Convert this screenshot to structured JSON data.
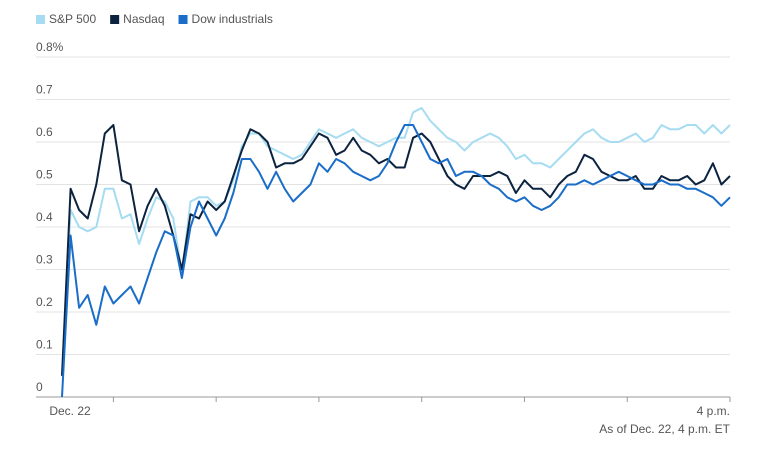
{
  "chart_data": {
    "type": "line",
    "categories": [
      "Dec. 22",
      null,
      null,
      null,
      null,
      null,
      null,
      null,
      null,
      null,
      null,
      null,
      null,
      null,
      null,
      null,
      null,
      null,
      null,
      null,
      null,
      null,
      null,
      null,
      null,
      null,
      null,
      null,
      null,
      null,
      null,
      null,
      null,
      null,
      null,
      null,
      null,
      null,
      null,
      null,
      null,
      null,
      null,
      null,
      null,
      null,
      null,
      null,
      null,
      null,
      null,
      null,
      null,
      null,
      null,
      null,
      null,
      null,
      null,
      null,
      null,
      null,
      null,
      null,
      null,
      null,
      null,
      null,
      null,
      null,
      null,
      null,
      null,
      null,
      null,
      null,
      null,
      null,
      "4 p.m."
    ],
    "series": [
      {
        "name": "S&P 500",
        "color": "#a6dcf2",
        "values": [
          0.05,
          0.44,
          0.4,
          0.39,
          0.4,
          0.49,
          0.49,
          0.42,
          0.43,
          0.36,
          0.42,
          0.47,
          0.46,
          0.42,
          0.29,
          0.46,
          0.47,
          0.47,
          0.45,
          0.46,
          0.51,
          0.59,
          0.62,
          0.62,
          0.59,
          0.58,
          0.57,
          0.56,
          0.57,
          0.6,
          0.63,
          0.62,
          0.61,
          0.62,
          0.63,
          0.61,
          0.6,
          0.59,
          0.6,
          0.61,
          0.61,
          0.67,
          0.68,
          0.65,
          0.63,
          0.61,
          0.6,
          0.58,
          0.6,
          0.61,
          0.62,
          0.61,
          0.59,
          0.56,
          0.57,
          0.55,
          0.55,
          0.54,
          0.56,
          0.58,
          0.6,
          0.62,
          0.63,
          0.61,
          0.6,
          0.6,
          0.61,
          0.62,
          0.6,
          0.61,
          0.64,
          0.63,
          0.63,
          0.64,
          0.64,
          0.62,
          0.64,
          0.62,
          0.64
        ]
      },
      {
        "name": "Nasdaq",
        "color": "#0c2340",
        "values": [
          0.05,
          0.49,
          0.44,
          0.42,
          0.5,
          0.62,
          0.64,
          0.51,
          0.5,
          0.39,
          0.45,
          0.49,
          0.45,
          0.38,
          0.3,
          0.43,
          0.42,
          0.46,
          0.44,
          0.46,
          0.52,
          0.58,
          0.63,
          0.62,
          0.6,
          0.54,
          0.55,
          0.55,
          0.56,
          0.59,
          0.62,
          0.61,
          0.57,
          0.58,
          0.61,
          0.58,
          0.57,
          0.55,
          0.56,
          0.54,
          0.54,
          0.61,
          0.62,
          0.6,
          0.56,
          0.52,
          0.5,
          0.49,
          0.52,
          0.52,
          0.52,
          0.53,
          0.52,
          0.48,
          0.51,
          0.49,
          0.49,
          0.47,
          0.5,
          0.52,
          0.53,
          0.57,
          0.56,
          0.53,
          0.52,
          0.51,
          0.51,
          0.52,
          0.49,
          0.49,
          0.52,
          0.51,
          0.51,
          0.52,
          0.5,
          0.51,
          0.55,
          0.5,
          0.52
        ]
      },
      {
        "name": "Dow industrials",
        "color": "#1a6dc8",
        "values": [
          0.0,
          0.38,
          0.21,
          0.24,
          0.17,
          0.26,
          0.22,
          0.24,
          0.26,
          0.22,
          0.28,
          0.34,
          0.39,
          0.38,
          0.28,
          0.4,
          0.46,
          0.42,
          0.38,
          0.42,
          0.48,
          0.56,
          0.56,
          0.53,
          0.49,
          0.53,
          0.49,
          0.46,
          0.48,
          0.5,
          0.55,
          0.53,
          0.56,
          0.55,
          0.53,
          0.52,
          0.51,
          0.52,
          0.55,
          0.6,
          0.64,
          0.64,
          0.6,
          0.56,
          0.55,
          0.56,
          0.52,
          0.53,
          0.53,
          0.52,
          0.5,
          0.49,
          0.47,
          0.46,
          0.47,
          0.45,
          0.44,
          0.45,
          0.47,
          0.5,
          0.5,
          0.51,
          0.5,
          0.51,
          0.52,
          0.53,
          0.52,
          0.51,
          0.5,
          0.5,
          0.51,
          0.5,
          0.5,
          0.49,
          0.49,
          0.48,
          0.47,
          0.45,
          0.47
        ]
      }
    ],
    "ylim": [
      0,
      0.8
    ],
    "yticks": [
      0,
      0.1,
      0.2,
      0.3,
      0.4,
      0.5,
      0.6,
      0.7,
      {
        "value": 0.8,
        "label": "0.8%"
      }
    ],
    "grid": true,
    "legend": "top-left",
    "note": "As of Dec. 22, 4 p.m. ET"
  }
}
